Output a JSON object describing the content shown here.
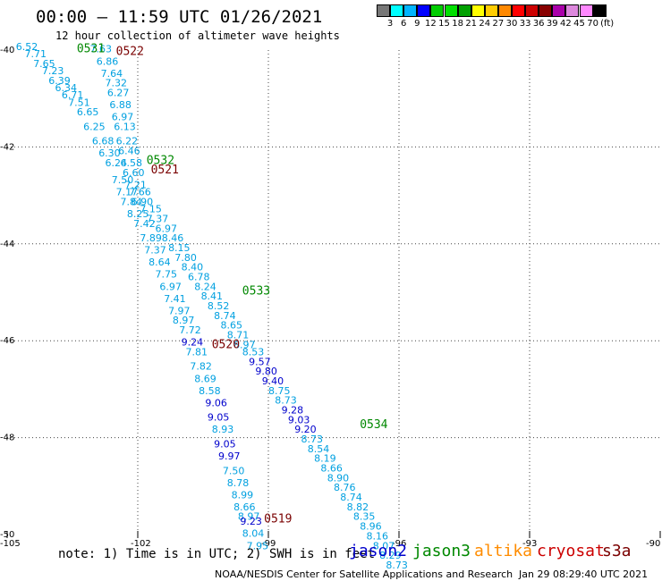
{
  "title": "00:00 – 11:59 UTC 01/26/2021",
  "subtitle": "12 hour collection of altimeter wave heights",
  "note": "note: 1) Time is in UTC; 2) SWH is in feet",
  "credit": "NOAA/NESDIS Center for Satellite Applications and Research",
  "credit_time": "Jan 29 08:29:40 UTC 2021",
  "satellites": [
    {
      "name": "jason2",
      "color": "#0000cc"
    },
    {
      "name": "jason3",
      "color": "#008800"
    },
    {
      "name": "altika",
      "color": "#ff8c00"
    },
    {
      "name": "cryosat",
      "color": "#cc0000"
    },
    {
      "name": "s3a",
      "color": "#7a0000"
    }
  ],
  "colorbar": {
    "unit": "(ft)",
    "colors": [
      "#777777",
      "#00ffff",
      "#00b4ff",
      "#0000ff",
      "#00cc00",
      "#00e000",
      "#00a000",
      "#ffff00",
      "#ffcc00",
      "#ff8800",
      "#ff0000",
      "#cc0000",
      "#880000",
      "#aa00aa",
      "#dd88dd",
      "#ff88ff",
      "#000000"
    ],
    "labels": [
      "3",
      "6",
      "9",
      "12",
      "15",
      "18",
      "21",
      "24",
      "27",
      "30",
      "33",
      "36",
      "39",
      "42",
      "45",
      "70"
    ]
  },
  "axes": {
    "lon_ticks": [
      "-105",
      "-102",
      "-99",
      "-96",
      "-93",
      "-90"
    ],
    "lat_ticks": [
      "-40",
      "-42",
      "-44",
      "-46",
      "-48",
      "-50"
    ]
  },
  "pass_labels": [
    {
      "text": "0531",
      "lon": -103.4,
      "lat": -40.05,
      "color": "#008800"
    },
    {
      "text": "0522",
      "lon": -102.5,
      "lat": -40.1,
      "color": "#7a0000"
    },
    {
      "text": "0532",
      "lon": -101.8,
      "lat": -42.35,
      "color": "#008800"
    },
    {
      "text": "0521",
      "lon": -101.7,
      "lat": -42.55,
      "color": "#7a0000"
    },
    {
      "text": "0533",
      "lon": -99.6,
      "lat": -45.05,
      "color": "#008800"
    },
    {
      "text": "0520",
      "lon": -100.3,
      "lat": -46.15,
      "color": "#7a0000"
    },
    {
      "text": "0534",
      "lon": -96.9,
      "lat": -47.8,
      "color": "#008800"
    },
    {
      "text": "0519",
      "lon": -99.1,
      "lat": -49.75,
      "color": "#7a0000"
    }
  ],
  "tracks": [
    {
      "points": [
        {
          "v": "6.52",
          "lon": -104.8,
          "lat": -40.0
        },
        {
          "v": "7.71",
          "lon": -104.6,
          "lat": -40.15
        },
        {
          "v": "7.65",
          "lon": -104.4,
          "lat": -40.35
        },
        {
          "v": "7.23",
          "lon": -104.2,
          "lat": -40.5
        },
        {
          "v": "6.39",
          "lon": -104.05,
          "lat": -40.7
        },
        {
          "v": "6.34",
          "lon": -103.9,
          "lat": -40.85
        },
        {
          "v": "6.71",
          "lon": -103.75,
          "lat": -41.0
        },
        {
          "v": "7.51",
          "lon": -103.6,
          "lat": -41.15
        },
        {
          "v": "6.65",
          "lon": -103.4,
          "lat": -41.35
        },
        {
          "v": "6.25",
          "lon": -103.25,
          "lat": -41.65
        },
        {
          "v": "6.68",
          "lon": -103.05,
          "lat": -41.95
        },
        {
          "v": "6.30",
          "lon": -102.9,
          "lat": -42.2
        },
        {
          "v": "6.24",
          "lon": -102.75,
          "lat": -42.4
        },
        {
          "v": "7.50",
          "lon": -102.6,
          "lat": -42.75
        },
        {
          "v": "7.17",
          "lon": -102.5,
          "lat": -43.0
        },
        {
          "v": "7.84",
          "lon": -102.4,
          "lat": -43.2
        },
        {
          "v": "8.25",
          "lon": -102.25,
          "lat": -43.45
        },
        {
          "v": "7.42",
          "lon": -102.1,
          "lat": -43.65
        },
        {
          "v": "7.89",
          "lon": -101.95,
          "lat": -43.95
        },
        {
          "v": "7.37",
          "lon": -101.85,
          "lat": -44.2
        },
        {
          "v": "8.64",
          "lon": -101.75,
          "lat": -44.45
        },
        {
          "v": "7.75",
          "lon": -101.6,
          "lat": -44.7
        },
        {
          "v": "6.97",
          "lon": -101.5,
          "lat": -44.95
        },
        {
          "v": "7.41",
          "lon": -101.4,
          "lat": -45.2
        },
        {
          "v": "7.97",
          "lon": -101.3,
          "lat": -45.45
        },
        {
          "v": "8.97",
          "lon": -101.2,
          "lat": -45.65
        },
        {
          "v": "7.72",
          "lon": -101.05,
          "lat": -45.85
        },
        {
          "v": "9.24",
          "lon": -101.0,
          "lat": -46.1
        },
        {
          "v": "7.81",
          "lon": -100.9,
          "lat": -46.3
        },
        {
          "v": "7.82",
          "lon": -100.8,
          "lat": -46.6
        },
        {
          "v": "8.69",
          "lon": -100.7,
          "lat": -46.85
        },
        {
          "v": "8.58",
          "lon": -100.6,
          "lat": -47.1
        },
        {
          "v": "9.06",
          "lon": -100.45,
          "lat": -47.35
        },
        {
          "v": "9.05",
          "lon": -100.4,
          "lat": -47.65
        },
        {
          "v": "8.93",
          "lon": -100.3,
          "lat": -47.9
        },
        {
          "v": "9.05",
          "lon": -100.25,
          "lat": -48.2
        },
        {
          "v": "9.97",
          "lon": -100.15,
          "lat": -48.45
        },
        {
          "v": "7.50",
          "lon": -100.05,
          "lat": -48.75
        },
        {
          "v": "8.78",
          "lon": -99.95,
          "lat": -49.0
        },
        {
          "v": "8.99",
          "lon": -99.85,
          "lat": -49.25
        },
        {
          "v": "8.66",
          "lon": -99.8,
          "lat": -49.5
        },
        {
          "v": "8.97",
          "lon": -99.7,
          "lat": -49.7
        },
        {
          "v": "9.23",
          "lon": -99.65,
          "lat": -49.8
        },
        {
          "v": "8.04",
          "lon": -99.6,
          "lat": -50.05
        },
        {
          "v": "7.95",
          "lon": -99.5,
          "lat": -50.3
        }
      ]
    },
    {
      "points": [
        {
          "v": "7.63",
          "lon": -103.1,
          "lat": -40.05
        },
        {
          "v": "6.86",
          "lon": -102.95,
          "lat": -40.3
        },
        {
          "v": "7.64",
          "lon": -102.85,
          "lat": -40.55
        },
        {
          "v": "7.32",
          "lon": -102.75,
          "lat": -40.75
        },
        {
          "v": "6.27",
          "lon": -102.7,
          "lat": -40.95
        },
        {
          "v": "6.88",
          "lon": -102.65,
          "lat": -41.2
        },
        {
          "v": "6.97",
          "lon": -102.6,
          "lat": -41.45
        },
        {
          "v": "6.13",
          "lon": -102.55,
          "lat": -41.65
        },
        {
          "v": "6.22",
          "lon": -102.5,
          "lat": -41.95
        },
        {
          "v": "6.46",
          "lon": -102.45,
          "lat": -42.15
        },
        {
          "v": "6.58",
          "lon": -102.4,
          "lat": -42.4
        },
        {
          "v": "6.60",
          "lon": -102.35,
          "lat": -42.6
        },
        {
          "v": "7.21",
          "lon": -102.3,
          "lat": -42.85
        },
        {
          "v": "7.66",
          "lon": -102.2,
          "lat": -43.0
        },
        {
          "v": "6.90",
          "lon": -102.15,
          "lat": -43.2
        },
        {
          "v": "7.15",
          "lon": -101.95,
          "lat": -43.35
        },
        {
          "v": "7.37",
          "lon": -101.8,
          "lat": -43.55
        },
        {
          "v": "6.97",
          "lon": -101.6,
          "lat": -43.75
        },
        {
          "v": "8.46",
          "lon": -101.45,
          "lat": -43.95
        },
        {
          "v": "8.15",
          "lon": -101.3,
          "lat": -44.15
        },
        {
          "v": "7.80",
          "lon": -101.15,
          "lat": -44.35
        },
        {
          "v": "8.40",
          "lon": -101.0,
          "lat": -44.55
        },
        {
          "v": "6.78",
          "lon": -100.85,
          "lat": -44.75
        },
        {
          "v": "8.24",
          "lon": -100.7,
          "lat": -44.95
        },
        {
          "v": "8.41",
          "lon": -100.55,
          "lat": -45.15
        },
        {
          "v": "8.52",
          "lon": -100.4,
          "lat": -45.35
        },
        {
          "v": "8.74",
          "lon": -100.25,
          "lat": -45.55
        },
        {
          "v": "8.65",
          "lon": -100.1,
          "lat": -45.75
        },
        {
          "v": "8.71",
          "lon": -99.95,
          "lat": -45.95
        },
        {
          "v": "8.97",
          "lon": -99.8,
          "lat": -46.15
        },
        {
          "v": "8.53",
          "lon": -99.6,
          "lat": -46.3
        },
        {
          "v": "9.57",
          "lon": -99.45,
          "lat": -46.5
        },
        {
          "v": "9.80",
          "lon": -99.3,
          "lat": -46.7
        },
        {
          "v": "9.40",
          "lon": -99.15,
          "lat": -46.9
        },
        {
          "v": "8.75",
          "lon": -99.0,
          "lat": -47.1
        },
        {
          "v": "8.73",
          "lon": -98.85,
          "lat": -47.3
        },
        {
          "v": "9.28",
          "lon": -98.7,
          "lat": -47.5
        },
        {
          "v": "9.03",
          "lon": -98.55,
          "lat": -47.7
        },
        {
          "v": "9.20",
          "lon": -98.4,
          "lat": -47.9
        },
        {
          "v": "8.73",
          "lon": -98.25,
          "lat": -48.1
        },
        {
          "v": "8.54",
          "lon": -98.1,
          "lat": -48.3
        },
        {
          "v": "8.19",
          "lon": -97.95,
          "lat": -48.5
        },
        {
          "v": "8.66",
          "lon": -97.8,
          "lat": -48.7
        },
        {
          "v": "8.90",
          "lon": -97.65,
          "lat": -48.9
        },
        {
          "v": "8.76",
          "lon": -97.5,
          "lat": -49.1
        },
        {
          "v": "8.74",
          "lon": -97.35,
          "lat": -49.3
        },
        {
          "v": "8.82",
          "lon": -97.2,
          "lat": -49.5
        },
        {
          "v": "8.35",
          "lon": -97.05,
          "lat": -49.7
        },
        {
          "v": "8.96",
          "lon": -96.9,
          "lat": -49.9
        },
        {
          "v": "8.16",
          "lon": -96.75,
          "lat": -50.1
        },
        {
          "v": "8.07",
          "lon": -96.6,
          "lat": -50.3
        },
        {
          "v": "8.29",
          "lon": -96.45,
          "lat": -50.5
        },
        {
          "v": "8.73",
          "lon": -96.3,
          "lat": -50.7
        }
      ]
    }
  ]
}
